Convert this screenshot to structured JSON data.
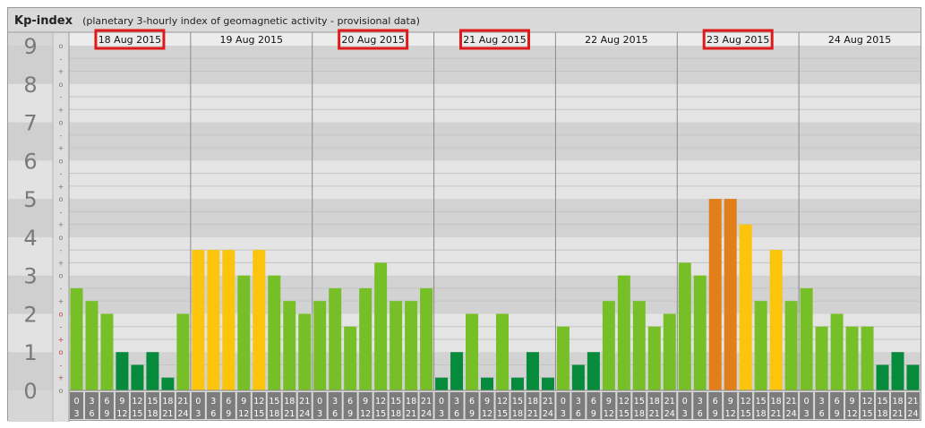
{
  "header": {
    "title": "Kp-index",
    "subtitle": "(planetary 3-hourly index of geomagnetic activity - provisional data)"
  },
  "colors": {
    "quiet_dark": "#068a3b",
    "quiet": "#77bf26",
    "active": "#fcc40c",
    "storm": "#e27f1b",
    "highlight_box": "#e01a1a"
  },
  "chart_data": {
    "type": "bar",
    "title": "Kp-index",
    "subtitle": "(planetary 3-hourly index of geomagnetic activity - provisional data)",
    "xlabel": "",
    "ylabel": "",
    "ylim": [
      0,
      9
    ],
    "y_ticks": [
      "0",
      "1",
      "2",
      "3",
      "4",
      "5",
      "6",
      "7",
      "8",
      "9"
    ],
    "y_minor_labels": [
      "o",
      "+",
      "-"
    ],
    "grid": true,
    "legend": "none",
    "days": [
      {
        "label": "18 Aug 2015",
        "highlighted": true,
        "values": [
          2.667,
          2.333,
          2.0,
          1.0,
          0.667,
          1.0,
          0.333,
          2.0
        ]
      },
      {
        "label": "19 Aug 2015",
        "highlighted": false,
        "values": [
          3.667,
          3.667,
          3.667,
          3.0,
          3.667,
          3.0,
          2.333,
          2.0
        ]
      },
      {
        "label": "20 Aug 2015",
        "highlighted": true,
        "values": [
          2.333,
          2.667,
          1.667,
          2.667,
          3.333,
          2.333,
          2.333,
          2.667
        ]
      },
      {
        "label": "21 Aug 2015",
        "highlighted": true,
        "values": [
          0.333,
          1.0,
          2.0,
          0.333,
          2.0,
          0.333,
          1.0,
          0.333
        ]
      },
      {
        "label": "22 Aug 2015",
        "highlighted": false,
        "values": [
          1.667,
          0.667,
          1.0,
          2.333,
          3.0,
          2.333,
          1.667,
          2.0
        ]
      },
      {
        "label": "23 Aug 2015",
        "highlighted": true,
        "values": [
          3.333,
          3.0,
          5.0,
          5.0,
          4.333,
          2.333,
          3.667,
          2.333
        ]
      },
      {
        "label": "24 Aug 2015",
        "highlighted": false,
        "values": [
          2.667,
          1.667,
          2.0,
          1.667,
          1.667,
          0.667,
          1.0,
          0.667
        ]
      }
    ],
    "hour_start_labels": [
      "0",
      "3",
      "6",
      "9",
      "12",
      "15",
      "18",
      "21"
    ],
    "hour_end_labels": [
      "3",
      "6",
      "9",
      "12",
      "15",
      "18",
      "21",
      "24"
    ]
  }
}
